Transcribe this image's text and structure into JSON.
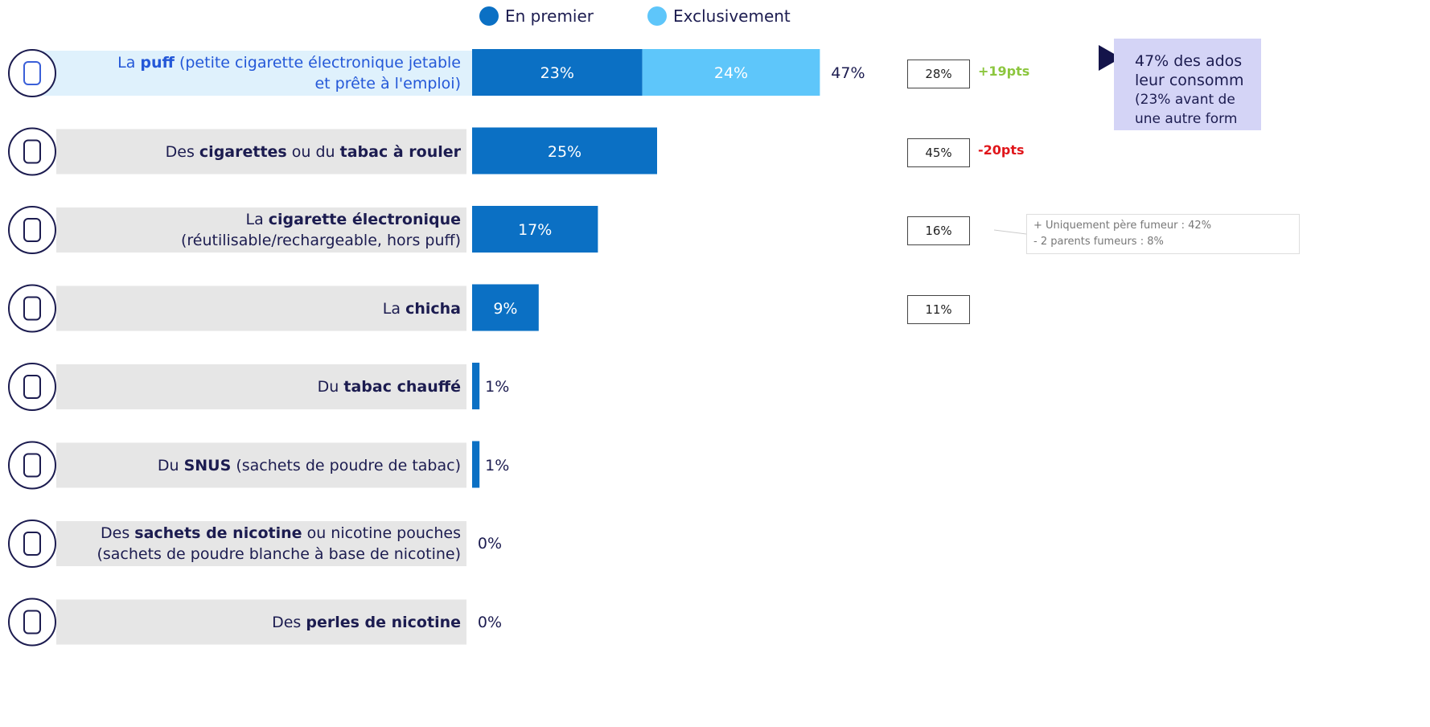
{
  "chart_data": {
    "type": "bar",
    "orientation": "horizontal",
    "stacked": true,
    "xlim": [
      0,
      100
    ],
    "categories": [
      [
        [
          {
            "t": "La "
          },
          {
            "t": "puff",
            "bold": true
          },
          {
            "t": " (petite cigarette électronique jetable"
          }
        ],
        [
          {
            "t": "et prête à l'emploi)"
          }
        ]
      ],
      [
        [
          {
            "t": "Des "
          },
          {
            "t": "cigarettes",
            "bold": true
          },
          {
            "t": " ou du "
          },
          {
            "t": "tabac à rouler",
            "bold": true
          }
        ]
      ],
      [
        [
          {
            "t": "La "
          },
          {
            "t": "cigarette électronique",
            "bold": true
          }
        ],
        [
          {
            "t": "(réutilisable/rechargeable, hors puff)"
          }
        ]
      ],
      [
        [
          {
            "t": "La "
          },
          {
            "t": "chicha",
            "bold": true
          }
        ]
      ],
      [
        [
          {
            "t": "Du "
          },
          {
            "t": "tabac chauffé",
            "bold": true
          }
        ]
      ],
      [
        [
          {
            "t": "Du "
          },
          {
            "t": "SNUS",
            "bold": true
          },
          {
            "t": " (sachets de poudre de tabac)"
          }
        ]
      ],
      [
        [
          {
            "t": "Des "
          },
          {
            "t": "sachets de nicotine",
            "bold": true
          },
          {
            "t": " ou nicotine pouches"
          }
        ],
        [
          {
            "t": "(sachets de poudre blanche à base de nicotine)"
          }
        ]
      ],
      [
        [
          {
            "t": "Des "
          },
          {
            "t": "perles de nicotine",
            "bold": true
          }
        ]
      ]
    ],
    "highlight": 0,
    "series": [
      {
        "name": "En premier",
        "color": "#0b70c4",
        "values": [
          23,
          25,
          17,
          9,
          1,
          1,
          0,
          0
        ],
        "value_labels": [
          "23%",
          "25%",
          "17%",
          "9%",
          "1%",
          "1%",
          "0%",
          "0%"
        ]
      },
      {
        "name": "Exclusivement",
        "color": "#5ec6fa",
        "values": [
          24,
          null,
          null,
          null,
          null,
          null,
          null,
          null
        ],
        "value_labels": [
          "24%",
          null,
          null,
          null,
          null,
          null,
          null,
          null
        ]
      }
    ],
    "totals": [
      47,
      null,
      null,
      null,
      null,
      null,
      null,
      null
    ],
    "total_labels": [
      "47%",
      null,
      null,
      null,
      null,
      null,
      null,
      null
    ],
    "previous": [
      28,
      45,
      16,
      11,
      null,
      null,
      null,
      null
    ],
    "previous_labels": [
      "28%",
      "45%",
      "16%",
      "11%",
      null,
      null,
      null,
      null
    ],
    "change_labels": [
      "+19pts",
      "-20pts",
      null,
      null,
      null,
      null,
      null,
      null
    ],
    "change_colors": [
      "#8cc63e",
      "#e0161b",
      null,
      null,
      null,
      null,
      null,
      null
    ],
    "note_row": 2,
    "note": [
      "+ Uniquement père fumeur : 42%",
      "- 2 parents fumeurs : 8%"
    ],
    "callout": [
      "47% des ados",
      "leur consomm",
      "(23% avant de",
      "une autre form"
    ]
  }
}
